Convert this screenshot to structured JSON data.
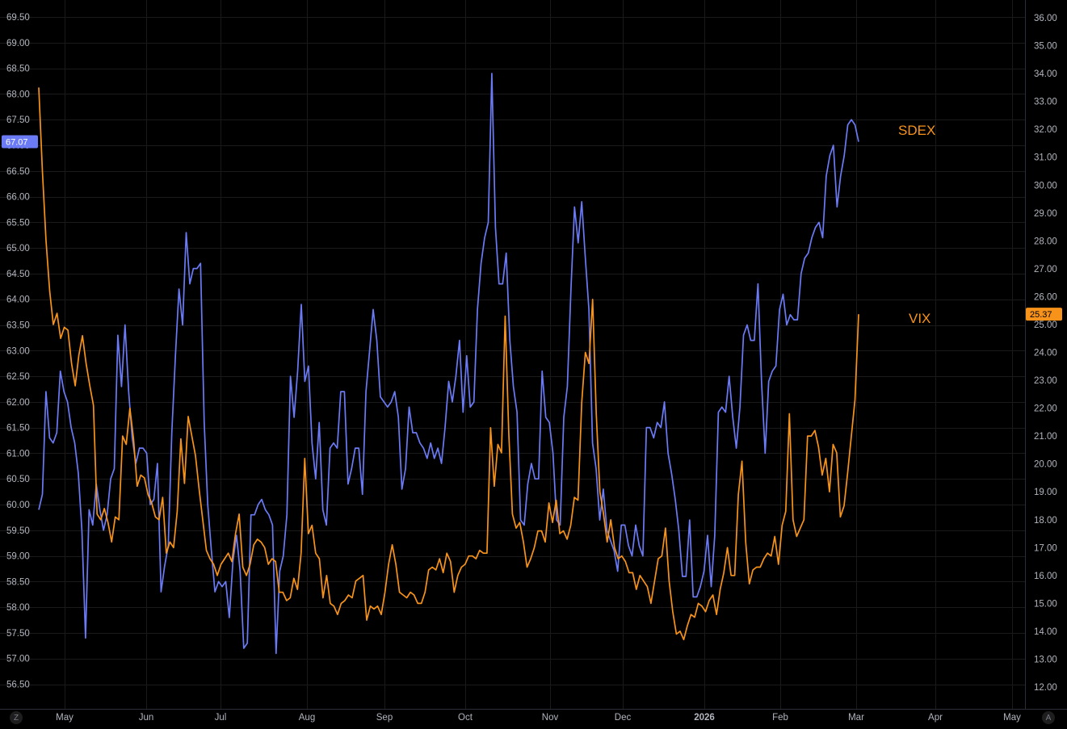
{
  "chart_data": {
    "type": "line",
    "x_tick_labels": [
      "May",
      "Jun",
      "Jul",
      "Aug",
      "Sep",
      "Oct",
      "Nov",
      "Dec",
      "2026",
      "Feb",
      "Mar",
      "Apr",
      "May"
    ],
    "left_axis": {
      "ylim": [
        56.0,
        69.7
      ],
      "ticks": [
        "56.50",
        "57.00",
        "57.50",
        "58.00",
        "58.50",
        "59.00",
        "59.50",
        "60.00",
        "60.50",
        "61.00",
        "61.50",
        "62.00",
        "62.50",
        "63.00",
        "63.50",
        "64.00",
        "64.50",
        "65.00",
        "65.50",
        "66.00",
        "66.50",
        "67.00",
        "67.50",
        "68.00",
        "68.50",
        "69.00",
        "69.50"
      ]
    },
    "right_axis": {
      "ylim": [
        11.5,
        36.5
      ],
      "ticks": [
        "12.00",
        "13.00",
        "14.00",
        "15.00",
        "16.00",
        "17.00",
        "18.00",
        "19.00",
        "20.00",
        "21.00",
        "22.00",
        "23.00",
        "24.00",
        "25.00",
        "26.00",
        "27.00",
        "28.00",
        "29.00",
        "30.00",
        "31.00",
        "32.00",
        "33.00",
        "34.00",
        "35.00",
        "36.00"
      ]
    },
    "grid": true,
    "series": [
      {
        "name": "SDEX",
        "axis": "left",
        "color": "#6b7af5",
        "last_value": "67.07",
        "values": [
          59.9,
          60.2,
          62.2,
          61.3,
          61.2,
          61.4,
          62.6,
          62.2,
          62.0,
          61.5,
          61.2,
          60.6,
          59.5,
          57.4,
          59.9,
          59.6,
          60.4,
          59.9,
          59.5,
          59.8,
          60.5,
          60.7,
          63.3,
          62.3,
          63.5,
          62.2,
          61.3,
          60.8,
          61.1,
          61.1,
          61.0,
          60.0,
          60.1,
          60.8,
          58.3,
          58.8,
          59.2,
          61.4,
          62.9,
          64.2,
          63.5,
          65.3,
          64.3,
          64.6,
          64.6,
          64.7,
          61.6,
          60.0,
          59.1,
          58.3,
          58.5,
          58.4,
          58.5,
          57.8,
          58.9,
          59.4,
          58.7,
          57.2,
          57.3,
          59.8,
          59.8,
          60.0,
          60.1,
          59.9,
          59.8,
          59.6,
          57.1,
          58.7,
          59.0,
          59.8,
          62.5,
          61.7,
          62.6,
          63.9,
          62.4,
          62.7,
          61.2,
          60.5,
          61.6,
          59.9,
          59.6,
          61.1,
          61.2,
          61.1,
          62.2,
          62.2,
          60.4,
          60.7,
          61.1,
          61.1,
          60.2,
          62.2,
          63.0,
          63.8,
          63.2,
          62.1,
          62.0,
          61.9,
          62.0,
          62.2,
          61.7,
          60.3,
          60.7,
          61.9,
          61.4,
          61.4,
          61.2,
          61.1,
          60.9,
          61.2,
          60.9,
          61.1,
          60.8,
          61.5,
          62.4,
          62.0,
          62.5,
          63.2,
          61.8,
          62.9,
          61.9,
          62.0,
          63.8,
          64.7,
          65.2,
          65.5,
          68.4,
          65.4,
          64.3,
          64.3,
          64.9,
          63.2,
          62.3,
          61.8,
          59.7,
          59.6,
          60.4,
          60.8,
          60.5,
          60.5,
          62.6,
          61.7,
          61.6,
          61.0,
          59.7,
          59.6,
          61.7,
          62.3,
          64.2,
          65.8,
          65.1,
          65.9,
          64.8,
          63.8,
          61.2,
          60.7,
          59.7,
          60.3,
          59.5,
          59.3,
          59.1,
          58.7,
          59.6,
          59.6,
          59.2,
          59.0,
          59.6,
          59.2,
          59.0,
          61.5,
          61.5,
          61.3,
          61.6,
          61.5,
          62.0,
          61.0,
          60.6,
          60.1,
          59.5,
          58.6,
          58.6,
          59.7,
          58.2,
          58.2,
          58.4,
          58.7,
          59.4,
          58.4,
          59.4,
          61.8,
          61.9,
          61.8,
          62.5,
          61.7,
          61.1,
          61.9,
          63.3,
          63.5,
          63.2,
          63.2,
          64.3,
          62.4,
          61.0,
          62.4,
          62.6,
          62.7,
          63.8,
          64.1,
          63.5,
          63.7,
          63.6,
          63.6,
          64.5,
          64.8,
          64.9,
          65.2,
          65.4,
          65.5,
          65.2,
          66.4,
          66.8,
          67.0,
          65.8,
          66.4,
          66.8,
          67.4,
          67.5,
          67.4,
          67.07
        ]
      },
      {
        "name": "VIX",
        "axis": "right",
        "color": "#f7931a",
        "last_value": "25.37",
        "values": [
          33.5,
          30.5,
          28.0,
          26.2,
          25.0,
          25.4,
          24.5,
          24.9,
          24.8,
          23.6,
          22.8,
          23.9,
          24.6,
          23.6,
          22.8,
          22.1,
          18.2,
          18.0,
          18.4,
          17.9,
          17.2,
          18.1,
          18.0,
          21.0,
          20.7,
          22.0,
          20.9,
          19.2,
          19.6,
          19.5,
          18.9,
          18.6,
          18.1,
          18.0,
          18.8,
          16.8,
          17.2,
          17.0,
          18.3,
          20.9,
          19.3,
          21.7,
          21.0,
          20.3,
          19.1,
          18.0,
          16.9,
          16.6,
          16.4,
          16.0,
          16.4,
          16.6,
          16.8,
          16.5,
          17.5,
          18.2,
          16.3,
          16.0,
          16.4,
          17.1,
          17.3,
          17.2,
          17.0,
          16.4,
          16.6,
          16.5,
          15.4,
          15.4,
          15.1,
          15.2,
          15.9,
          15.5,
          16.8,
          20.2,
          17.5,
          17.8,
          16.8,
          16.6,
          15.2,
          16.0,
          15.0,
          14.9,
          14.6,
          15.0,
          15.1,
          15.3,
          15.2,
          15.8,
          15.9,
          16.0,
          14.4,
          14.9,
          14.8,
          14.9,
          14.6,
          15.4,
          16.4,
          17.1,
          16.4,
          15.4,
          15.3,
          15.2,
          15.4,
          15.3,
          15.0,
          15.0,
          15.4,
          16.2,
          16.3,
          16.2,
          16.6,
          16.1,
          16.8,
          16.5,
          15.4,
          16.0,
          16.3,
          16.4,
          16.7,
          16.7,
          16.6,
          16.9,
          16.8,
          16.8,
          21.3,
          19.2,
          20.7,
          20.4,
          25.3,
          21.1,
          18.2,
          17.7,
          17.9,
          17.2,
          16.3,
          16.6,
          17.0,
          17.6,
          17.6,
          17.2,
          18.6,
          17.9,
          18.7,
          17.5,
          17.6,
          17.3,
          17.8,
          18.8,
          18.7,
          22.2,
          24.0,
          23.6,
          25.9,
          21.8,
          19.0,
          18.2,
          17.2,
          18.0,
          17.0,
          16.6,
          16.7,
          16.5,
          16.1,
          16.1,
          15.5,
          16.0,
          15.8,
          15.6,
          15.0,
          15.8,
          16.6,
          16.7,
          17.7,
          15.8,
          14.7,
          13.9,
          14.0,
          13.7,
          14.2,
          14.6,
          14.5,
          15.0,
          14.9,
          14.7,
          15.1,
          15.3,
          14.6,
          15.5,
          16.1,
          17.0,
          16.0,
          16.0,
          18.9,
          20.1,
          17.2,
          15.7,
          16.2,
          16.3,
          16.3,
          16.6,
          16.8,
          16.7,
          17.4,
          16.4,
          17.8,
          18.3,
          21.8,
          18.0,
          17.4,
          17.7,
          18.0,
          21.0,
          21.0,
          21.2,
          20.6,
          19.6,
          20.2,
          19.0,
          20.7,
          20.4,
          18.1,
          18.5,
          19.7,
          21.0,
          22.3,
          25.37
        ]
      }
    ]
  },
  "chart_colors": {
    "background": "#000000",
    "grid": "#1a1a1a",
    "text": "#b2b5be",
    "border": "#2a2e39"
  },
  "controls": {
    "left_corner": "Z",
    "right_corner": "A"
  }
}
